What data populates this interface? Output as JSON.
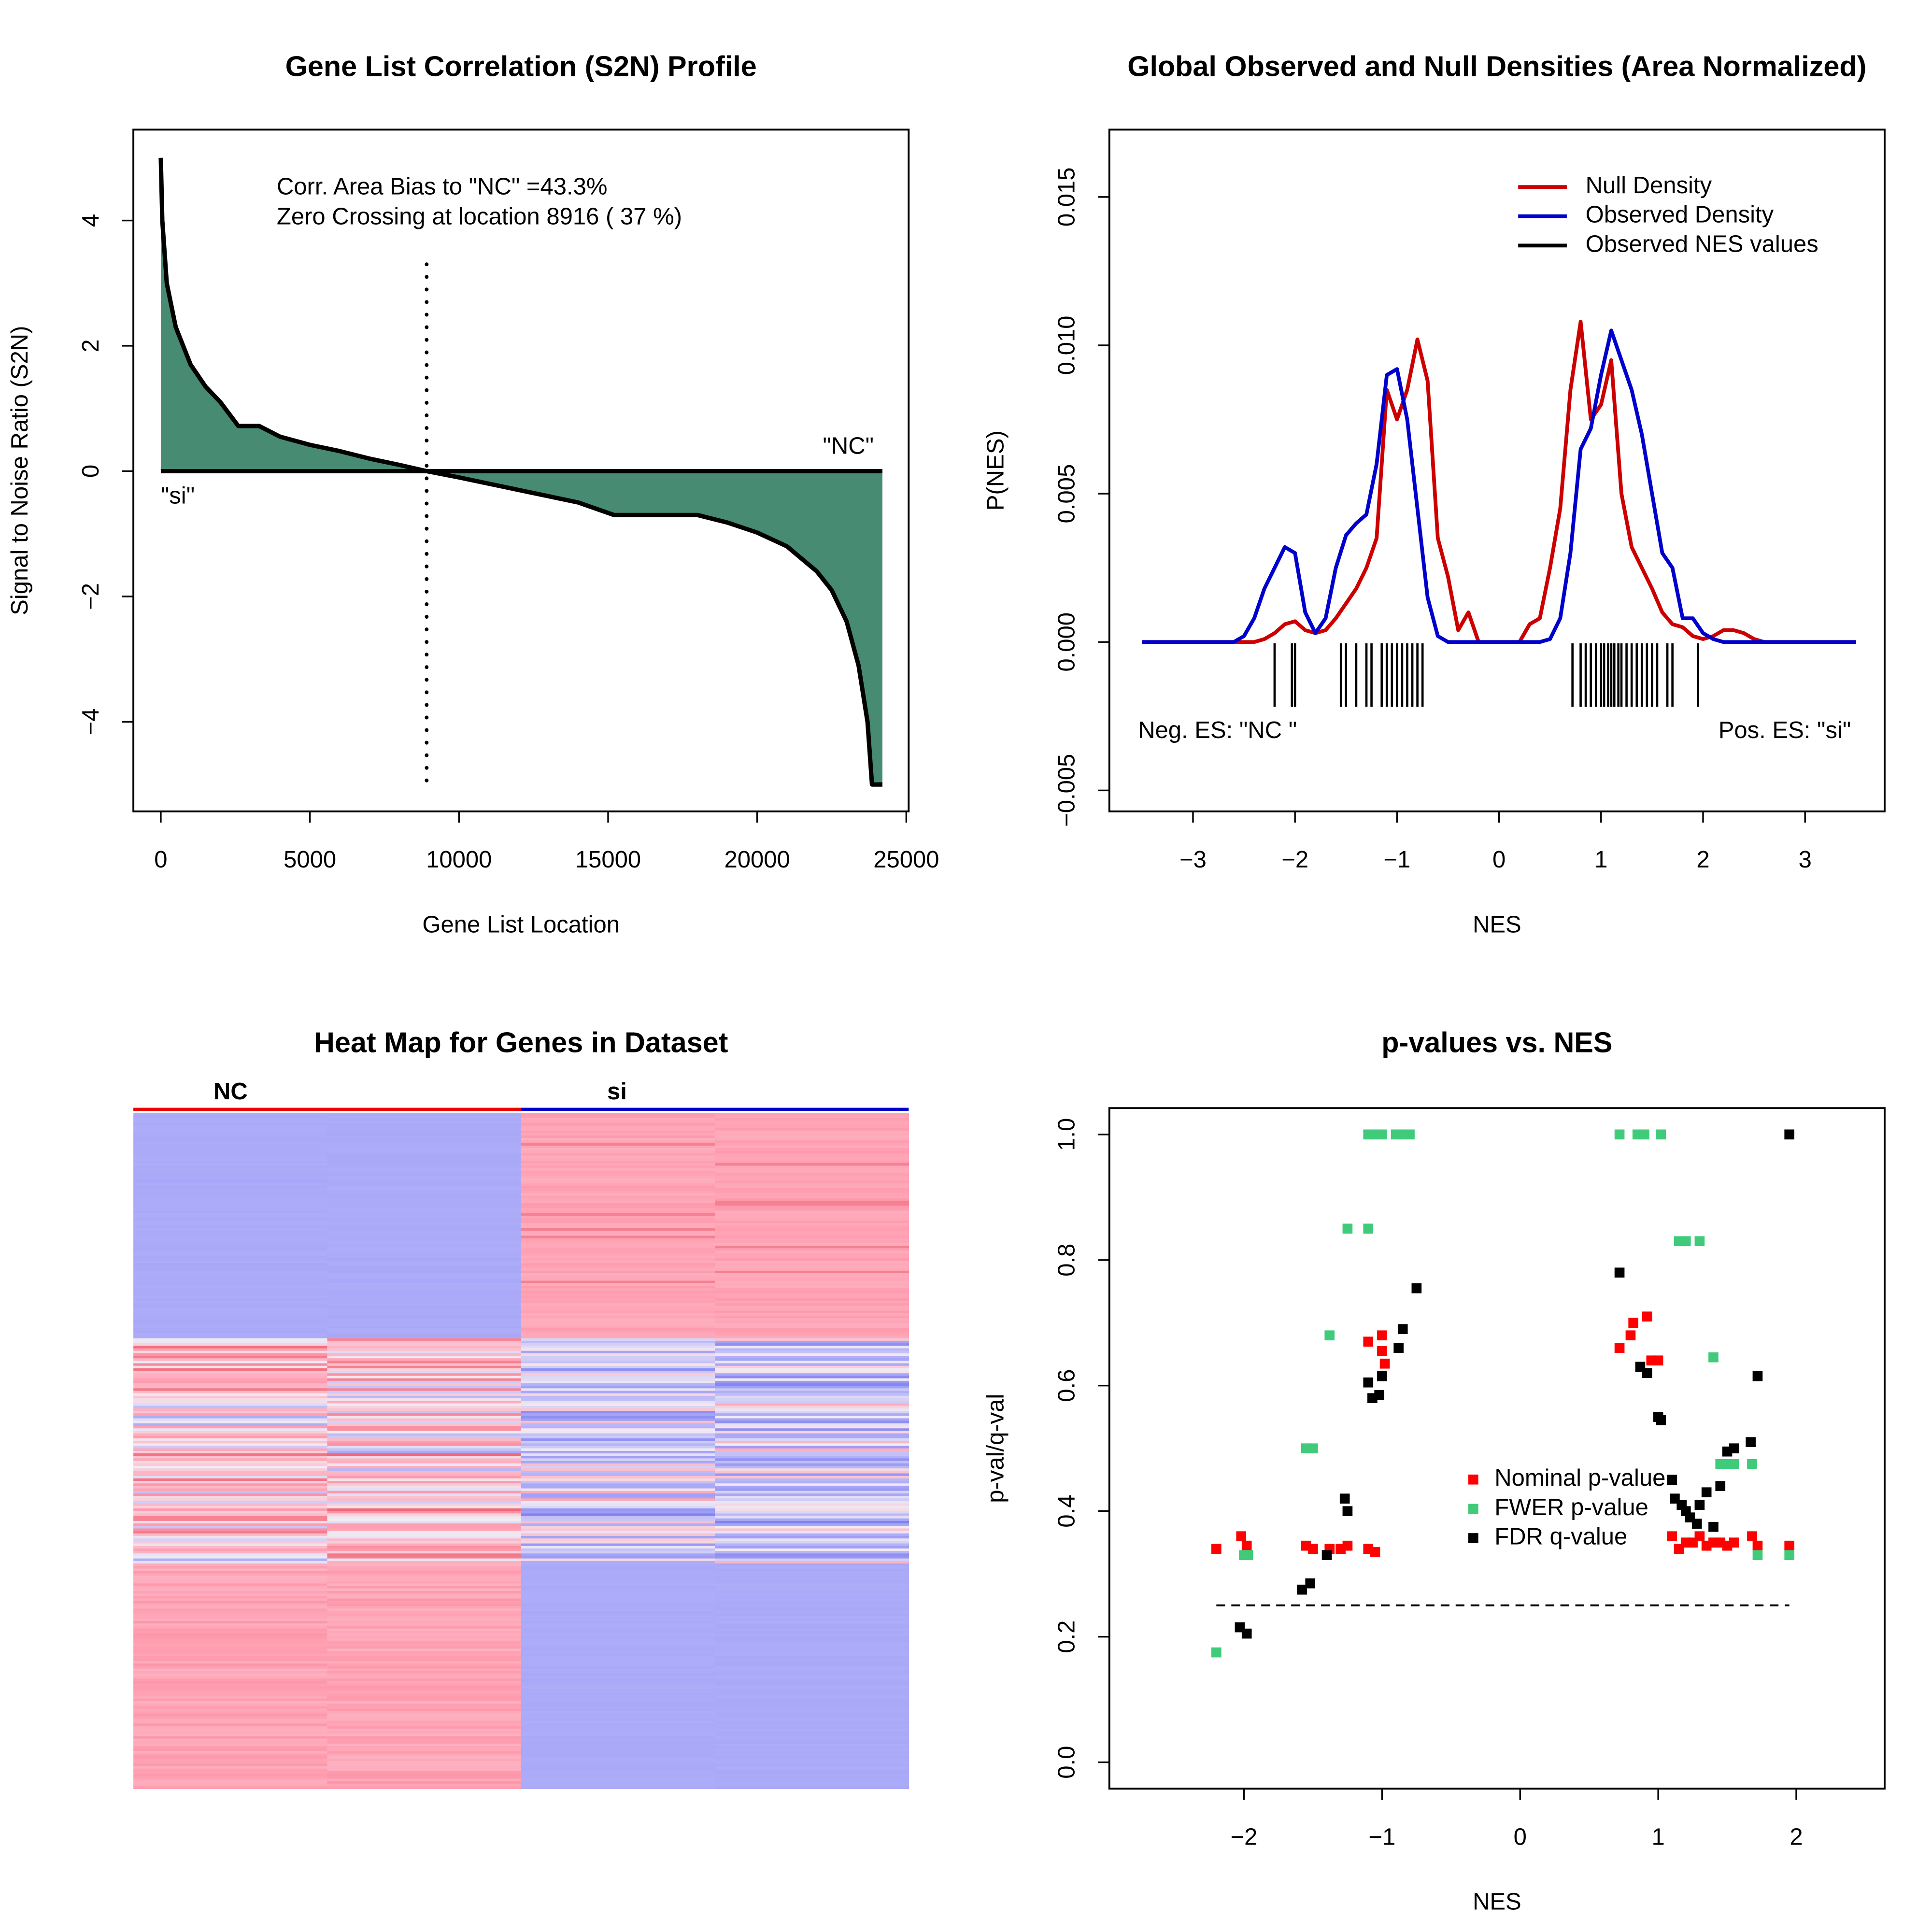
{
  "chart_data": [
    {
      "type": "area",
      "title": "Gene List Correlation (S2N) Profile",
      "x_label": "Gene List Location",
      "y_label": "Signal to Noise Ratio (S2N)",
      "x": [
        0,
        50,
        200,
        500,
        1000,
        1500,
        2000,
        2600,
        3300,
        4000,
        5000,
        6000,
        7000,
        8000,
        8916,
        10000,
        12000,
        14000,
        15200,
        18000,
        19000,
        20000,
        21000,
        22000,
        22500,
        23000,
        23400,
        23700,
        23850,
        24200
      ],
      "values": [
        5.0,
        4.0,
        3.0,
        2.3,
        1.7,
        1.35,
        1.1,
        0.72,
        0.72,
        0.55,
        0.42,
        0.32,
        0.2,
        0.1,
        0,
        -0.1,
        -0.3,
        -0.5,
        -0.7,
        -0.7,
        -0.82,
        -0.98,
        -1.2,
        -1.6,
        -1.9,
        -2.4,
        -3.1,
        -4.0,
        -5.0,
        -5.0
      ],
      "color": "#468b72",
      "xlim": [
        -920,
        25080
      ],
      "ylim": [
        -5.43,
        5.45
      ],
      "xticks": [
        0,
        5000,
        10000,
        15000,
        20000,
        25000
      ],
      "yticks": [
        {
          "value": -4,
          "label": "−4"
        },
        {
          "value": -2,
          "label": "−2"
        },
        0,
        2,
        4
      ],
      "zero_crossing": 8916,
      "annotations": [
        "Corr. Area Bias to \"NC\" =43.3%",
        "Zero Crossing at location  8916  ( 37  %)"
      ],
      "left_label": "\"si\"",
      "right_label": "\"NC\""
    },
    {
      "type": "line",
      "title": "Global Observed and Null Densities (Area Normalized)",
      "x_label": "NES",
      "y_label": "P(NES)",
      "x": [
        -3.5,
        -3.4,
        -3.3,
        -3.2,
        -3.1,
        -3.0,
        -2.9,
        -2.8,
        -2.7,
        -2.6,
        -2.5,
        -2.4,
        -2.3,
        -2.2,
        -2.1,
        -2.0,
        -1.9,
        -1.8,
        -1.7,
        -1.6,
        -1.5,
        -1.4,
        -1.3,
        -1.2,
        -1.1,
        -1.0,
        -0.9,
        -0.8,
        -0.7,
        -0.6,
        -0.5,
        -0.4,
        -0.3,
        -0.2,
        -0.1,
        0,
        0.1,
        0.2,
        0.3,
        0.4,
        0.5,
        0.6,
        0.7,
        0.8,
        0.9,
        1.0,
        1.1,
        1.2,
        1.3,
        1.4,
        1.5,
        1.6,
        1.7,
        1.8,
        1.9,
        2.0,
        2.1,
        2.2,
        2.3,
        2.4,
        2.5,
        2.6,
        2.7,
        2.8,
        2.9,
        3.0,
        3.1,
        3.2,
        3.3,
        3.4,
        3.5
      ],
      "series": [
        {
          "name": "Null Density",
          "color": "#cc0000",
          "values": [
            0,
            0,
            0,
            0,
            0,
            0,
            0,
            0,
            0,
            0,
            0,
            0,
            0.0001,
            0.0003,
            0.0006,
            0.0007,
            0.0004,
            0.0003,
            0.0004,
            0.0008,
            0.0013,
            0.0018,
            0.0025,
            0.0035,
            0.0085,
            0.0075,
            0.0085,
            0.0102,
            0.0088,
            0.0035,
            0.0022,
            0.0004,
            0.001,
            0,
            0,
            0,
            0,
            0,
            0.0006,
            0.0008,
            0.0025,
            0.0045,
            0.0085,
            0.0108,
            0.0075,
            0.008,
            0.0095,
            0.005,
            0.0032,
            0.0025,
            0.0018,
            0.001,
            0.0006,
            0.0005,
            0.0002,
            0.0001,
            0.0002,
            0.0004,
            0.0004,
            0.0003,
            0.0001,
            0,
            0,
            0,
            0,
            0,
            0,
            0,
            0,
            0,
            0
          ]
        },
        {
          "name": "Observed Density",
          "color": "#0000cc",
          "values": [
            0,
            0,
            0,
            0,
            0,
            0,
            0,
            0,
            0,
            0,
            0.0002,
            0.0008,
            0.0018,
            0.0025,
            0.0032,
            0.003,
            0.001,
            0.0003,
            0.0008,
            0.0025,
            0.0036,
            0.004,
            0.0043,
            0.006,
            0.009,
            0.0092,
            0.0075,
            0.0045,
            0.0015,
            0.0002,
            0,
            0,
            0,
            0,
            0,
            0,
            0,
            0,
            0,
            0,
            0.0001,
            0.0008,
            0.003,
            0.0065,
            0.0072,
            0.009,
            0.0105,
            0.0095,
            0.0085,
            0.007,
            0.005,
            0.003,
            0.0025,
            0.0008,
            0.0008,
            0.0003,
            0.0001,
            0,
            0,
            0,
            0,
            0,
            0,
            0,
            0,
            0,
            0,
            0,
            0,
            0,
            0
          ]
        },
        {
          "name": "Observed NES values",
          "color": "#000000",
          "rug": [
            -2.2,
            -2.03,
            -2.0,
            -1.55,
            -1.5,
            -1.4,
            -1.3,
            -1.25,
            -1.15,
            -1.1,
            -1.05,
            -1.0,
            -0.95,
            -0.9,
            -0.85,
            -0.8,
            -0.75,
            0.72,
            0.8,
            0.85,
            0.9,
            0.95,
            1.0,
            1.03,
            1.07,
            1.1,
            1.13,
            1.17,
            1.2,
            1.25,
            1.3,
            1.35,
            1.4,
            1.45,
            1.5,
            1.55,
            1.65,
            1.7,
            1.95
          ]
        }
      ],
      "xlim": [
        -3.82,
        3.78
      ],
      "ylim": [
        -0.00571,
        0.01727
      ],
      "xticks": [
        {
          "value": -3,
          "label": "−3"
        },
        {
          "value": -2,
          "label": "−2"
        },
        {
          "value": -1,
          "label": "−1"
        },
        0,
        1,
        2,
        3
      ],
      "yticks": [
        {
          "value": -0.005,
          "label": "−0.005"
        },
        {
          "value": 0,
          "label": "0.000"
        },
        0.005,
        {
          "value": 0.01,
          "label": "0.010"
        },
        {
          "value": 0.015,
          "label": "0.015"
        }
      ],
      "legend": "topright",
      "annotations": [
        "Neg. ES: \"NC \"",
        "Pos. ES: \"si\""
      ]
    },
    {
      "type": "heatmap",
      "title": "Heat Map for Genes in Dataset",
      "columns": [
        "NC",
        "si"
      ],
      "column_colors": [
        "#ee0000",
        "#0000cc"
      ]
    },
    {
      "type": "scatter",
      "title": "p-values vs. NES",
      "x_label": "NES",
      "y_label": "p-val/q-val",
      "series": [
        {
          "name": "Nominal p-value",
          "color": "#ff0000",
          "x": [
            -2.2,
            -2.02,
            -1.98,
            -1.55,
            -1.5,
            -1.38,
            -1.3,
            -1.25,
            -1.1,
            -1.1,
            -1.05,
            -1.0,
            -1.0,
            -0.98,
            0.72,
            0.8,
            0.82,
            0.92,
            0.95,
            1.0,
            1.1,
            1.15,
            1.2,
            1.25,
            1.3,
            1.35,
            1.4,
            1.45,
            1.5,
            1.55,
            1.68,
            1.72,
            1.95
          ],
          "values": [
            0.34,
            0.36,
            0.345,
            0.345,
            0.34,
            0.34,
            0.34,
            0.345,
            0.67,
            0.34,
            0.335,
            0.68,
            0.655,
            0.635,
            0.66,
            0.68,
            0.7,
            0.71,
            0.64,
            0.64,
            0.36,
            0.34,
            0.35,
            0.35,
            0.36,
            0.345,
            0.35,
            0.35,
            0.345,
            0.35,
            0.36,
            0.345,
            0.345
          ]
        },
        {
          "name": "FWER p-value",
          "color": "#3fcb7a",
          "x": [
            -2.2,
            -2.0,
            -1.97,
            -1.55,
            -1.5,
            -1.38,
            -1.25,
            -1.1,
            -1.1,
            -1.05,
            -1.0,
            -0.9,
            -0.85,
            -0.8,
            0.72,
            0.85,
            0.9,
            1.02,
            1.15,
            1.2,
            1.3,
            1.4,
            1.45,
            1.5,
            1.55,
            1.68,
            1.72,
            1.95
          ],
          "values": [
            0.175,
            0.33,
            0.33,
            0.5,
            0.5,
            0.68,
            0.85,
            0.85,
            1.0,
            1.0,
            1.0,
            1.0,
            1.0,
            1.0,
            1.0,
            1.0,
            1.0,
            1.0,
            0.83,
            0.83,
            0.83,
            0.645,
            0.475,
            0.475,
            0.475,
            0.475,
            0.33,
            0.33
          ]
        },
        {
          "name": "FDR q-value",
          "color": "#000000",
          "x": [
            -2.03,
            -1.98,
            -1.58,
            -1.52,
            -1.4,
            -1.27,
            -1.25,
            -1.1,
            -1.07,
            -1.02,
            -1.0,
            -0.88,
            -0.85,
            -0.75,
            0.72,
            0.87,
            0.92,
            1.0,
            1.02,
            1.1,
            1.12,
            1.17,
            1.2,
            1.23,
            1.28,
            1.3,
            1.35,
            1.4,
            1.45,
            1.5,
            1.55,
            1.67,
            1.72,
            1.95
          ],
          "values": [
            0.215,
            0.205,
            0.275,
            0.285,
            0.33,
            0.42,
            0.4,
            0.605,
            0.58,
            0.585,
            0.615,
            0.66,
            0.69,
            0.755,
            0.78,
            0.63,
            0.62,
            0.55,
            0.545,
            0.45,
            0.42,
            0.41,
            0.4,
            0.39,
            0.38,
            0.41,
            0.43,
            0.375,
            0.44,
            0.495,
            0.5,
            0.51,
            0.615,
            1.0
          ]
        }
      ],
      "threshold": 0.25,
      "xlim": [
        -2.975,
        2.64
      ],
      "ylim": [
        -0.042,
        1.042
      ],
      "xticks": [
        {
          "value": -2,
          "label": "−2"
        },
        {
          "value": -1,
          "label": "−1"
        },
        0,
        1,
        2
      ],
      "yticks": [
        {
          "value": 0,
          "label": "0.0"
        },
        0.2,
        0.4,
        0.6,
        0.8,
        {
          "value": 1,
          "label": "1.0"
        }
      ],
      "legend": "right"
    }
  ]
}
